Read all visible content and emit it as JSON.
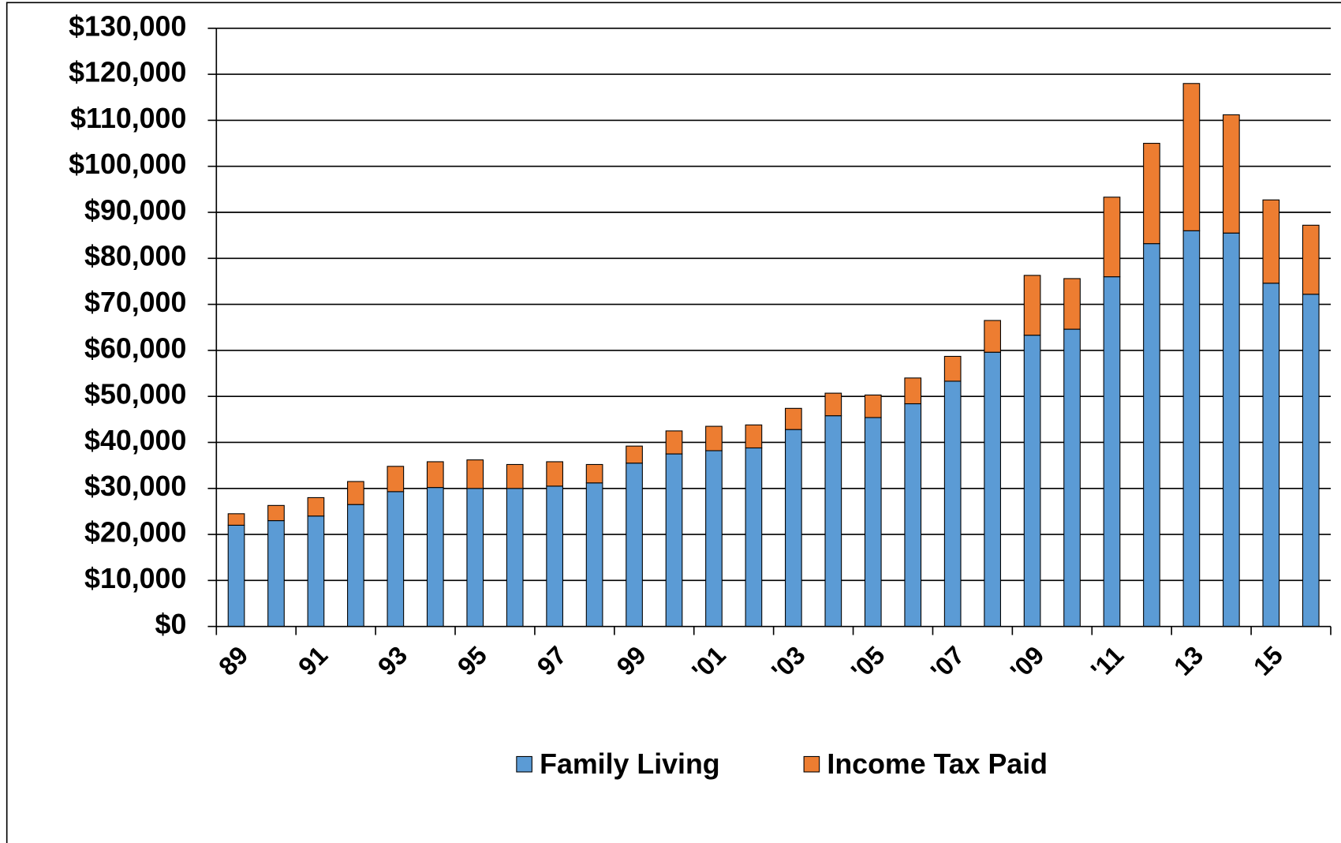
{
  "chart_data": {
    "type": "stacked_bar",
    "categories": [
      "89",
      null,
      "91",
      null,
      "93",
      null,
      "95",
      null,
      "97",
      null,
      "99",
      null,
      "'01",
      null,
      "'03",
      null,
      "'05",
      null,
      "'07",
      null,
      "'09",
      null,
      "'11",
      null,
      "13",
      null,
      "15",
      null
    ],
    "series": [
      {
        "name": "Family Living",
        "color": "#5b9bd5",
        "values": [
          22000,
          23000,
          24000,
          26500,
          29300,
          30200,
          30000,
          30000,
          30500,
          31200,
          35500,
          37500,
          38200,
          38800,
          42800,
          45800,
          45400,
          48400,
          53300,
          59600,
          63300,
          64600,
          76000,
          83200,
          86000,
          85500,
          74600,
          72200
        ]
      },
      {
        "name": "Income Tax Paid",
        "color": "#ed7d31",
        "values": [
          2500,
          3300,
          4000,
          5000,
          5500,
          5600,
          6200,
          5200,
          5300,
          4000,
          3700,
          5000,
          5300,
          5000,
          4600,
          4900,
          4900,
          5600,
          5400,
          6900,
          13000,
          11000,
          17300,
          21800,
          32000,
          25700,
          18100,
          15000
        ]
      }
    ],
    "ylim": [
      0,
      130000
    ],
    "yticks": [
      {
        "value": 0,
        "label": "$0"
      },
      {
        "value": 10000,
        "label": "$10,000"
      },
      {
        "value": 20000,
        "label": "$20,000"
      },
      {
        "value": 30000,
        "label": "$30,000"
      },
      {
        "value": 40000,
        "label": "$40,000"
      },
      {
        "value": 50000,
        "label": "$50,000"
      },
      {
        "value": 60000,
        "label": "$60,000"
      },
      {
        "value": 70000,
        "label": "$70,000"
      },
      {
        "value": 80000,
        "label": "$80,000"
      },
      {
        "value": 90000,
        "label": "$90,000"
      },
      {
        "value": 100000,
        "label": "$100,000"
      },
      {
        "value": 110000,
        "label": "$110,000"
      },
      {
        "value": 120000,
        "label": "$120,000"
      },
      {
        "value": 130000,
        "label": "$130,000"
      }
    ],
    "grid": true,
    "legend": "bottom"
  }
}
